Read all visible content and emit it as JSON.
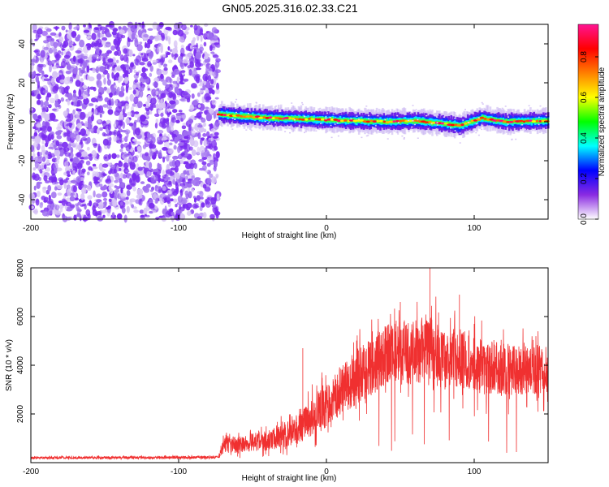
{
  "title": "GN05.2025.316.02.33.C21",
  "chart_data": [
    {
      "type": "heatmap",
      "name": "spectrogram",
      "xlabel": "Height of straight line (km)",
      "ylabel": "Frequency (Hz)",
      "xlim": [
        -200,
        150
      ],
      "ylim": [
        -50,
        50
      ],
      "xticks": [
        -200,
        -100,
        0,
        100
      ],
      "yticks": [
        -40,
        -20,
        0,
        20,
        40
      ],
      "noise_region_x": [
        -200,
        -73
      ],
      "signal_start_x": -73,
      "signal_center_hz": [
        {
          "x": -73,
          "f": 4
        },
        {
          "x": -60,
          "f": 3
        },
        {
          "x": -40,
          "f": 2
        },
        {
          "x": -20,
          "f": 1.5
        },
        {
          "x": 0,
          "f": 1
        },
        {
          "x": 20,
          "f": 0.5
        },
        {
          "x": 40,
          "f": 0
        },
        {
          "x": 60,
          "f": 0.5
        },
        {
          "x": 80,
          "f": -1
        },
        {
          "x": 90,
          "f": -2
        },
        {
          "x": 105,
          "f": 2
        },
        {
          "x": 120,
          "f": 0
        },
        {
          "x": 150,
          "f": 0.5
        }
      ],
      "colorbar": {
        "label": "Normalized spectral amplitude",
        "ticks": [
          0.0,
          0.2,
          0.4,
          0.6,
          0.8
        ],
        "tick_labels": [
          "0.0",
          "0.2",
          "0.4",
          "0.6",
          "0.8"
        ],
        "colormap": [
          "#ffffff",
          "#8a2be2",
          "#0000ff",
          "#00ffff",
          "#00ff00",
          "#ffff00",
          "#ff7f00",
          "#ff0000",
          "#ff1493"
        ]
      }
    },
    {
      "type": "line",
      "name": "snr",
      "xlabel": "Height of straight line (km)",
      "ylabel": "SNR (10 * v/v)",
      "xlim": [
        -200,
        150
      ],
      "ylim": [
        0,
        8000
      ],
      "xticks": [
        -200,
        -100,
        0,
        100
      ],
      "yticks": [
        2000,
        4000,
        6000,
        8000
      ],
      "color": "#f03030",
      "envelope": [
        {
          "x": -200,
          "mean": 200,
          "amp": 60
        },
        {
          "x": -73,
          "mean": 220,
          "amp": 70
        },
        {
          "x": -70,
          "mean": 700,
          "amp": 400
        },
        {
          "x": -40,
          "mean": 900,
          "amp": 500
        },
        {
          "x": -20,
          "mean": 1300,
          "amp": 700
        },
        {
          "x": 0,
          "mean": 2400,
          "amp": 1200
        },
        {
          "x": 20,
          "mean": 3500,
          "amp": 1400
        },
        {
          "x": 40,
          "mean": 4400,
          "amp": 1600
        },
        {
          "x": 60,
          "mean": 4600,
          "amp": 1700
        },
        {
          "x": 75,
          "mean": 4500,
          "amp": 1800
        },
        {
          "x": 100,
          "mean": 4000,
          "amp": 1500
        },
        {
          "x": 125,
          "mean": 3800,
          "amp": 1300
        },
        {
          "x": 150,
          "mean": 3800,
          "amp": 1200
        }
      ],
      "spikes": [
        {
          "x": -16,
          "y": 4700
        },
        {
          "x": 70,
          "y": 8000
        },
        {
          "x": 50,
          "y": 6600
        },
        {
          "x": 90,
          "y": 6900
        }
      ]
    }
  ]
}
